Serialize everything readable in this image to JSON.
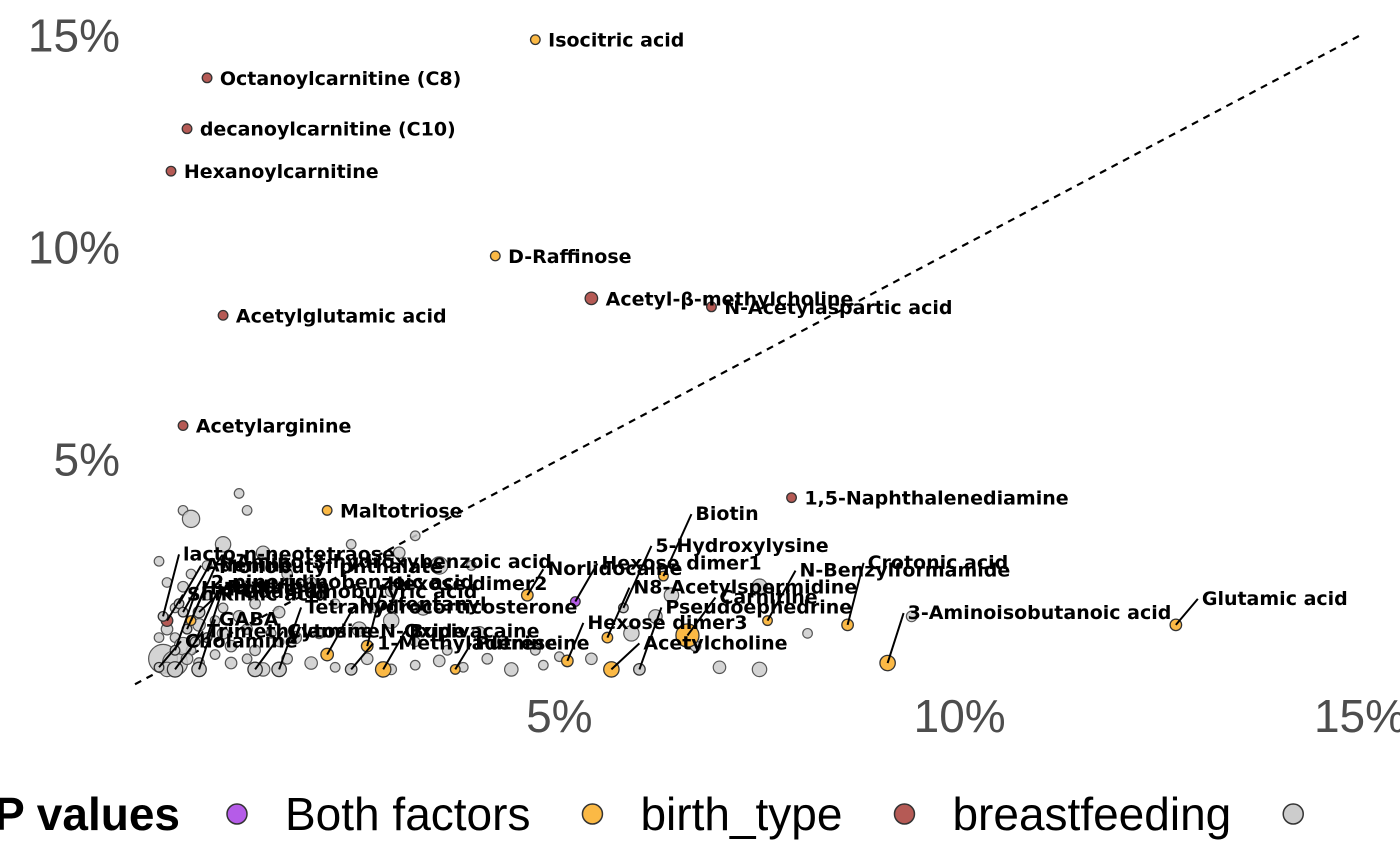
{
  "chart_data": {
    "type": "scatter",
    "title": "",
    "xlabel": "",
    "ylabel": "",
    "xlim": [
      -0.3,
      15
    ],
    "ylim": [
      -0.2,
      15.6
    ],
    "x_ticks": [
      {
        "value": 5,
        "label": "5%"
      },
      {
        "value": 10,
        "label": "10%"
      },
      {
        "value": 15,
        "label": "15%"
      }
    ],
    "y_ticks": [
      {
        "value": 5,
        "label": "5%"
      },
      {
        "value": 10,
        "label": "10%"
      },
      {
        "value": 15,
        "label": "15%"
      }
    ],
    "reference_line": {
      "style": "dashed",
      "slope": 1,
      "intercept": 0
    },
    "grid": false,
    "legend": {
      "title": "P values",
      "position": "bottom",
      "entries": [
        {
          "label": "Both factors",
          "color": "#b55ce8"
        },
        {
          "label": "birth_type",
          "color": "#fbb945"
        },
        {
          "label": "breastfeeding",
          "color": "#b55a55"
        },
        {
          "label": "",
          "color": "#cccccc"
        }
      ]
    },
    "colors": {
      "Both factors": "#b55ce8",
      "birth_type": "#fbb945",
      "breastfeeding": "#b55a55",
      "none": "#cccccc"
    },
    "labeled_points": [
      {
        "label": "Isocitric acid",
        "x": 4.7,
        "y": 14.9,
        "group": "birth_type",
        "size": 1
      },
      {
        "label": "Octanoylcarnitine (C8)",
        "x": 0.6,
        "y": 14.0,
        "group": "breastfeeding",
        "size": 1
      },
      {
        "label": "decanoylcarnitine (C10)",
        "x": 0.35,
        "y": 12.8,
        "group": "breastfeeding",
        "size": 1
      },
      {
        "label": "Hexanoylcarnitine",
        "x": 0.15,
        "y": 11.8,
        "group": "breastfeeding",
        "size": 1
      },
      {
        "label": "D-Raffinose",
        "x": 4.2,
        "y": 9.8,
        "group": "birth_type",
        "size": 1
      },
      {
        "label": "Acetyl-β-methylcholine",
        "x": 5.4,
        "y": 8.8,
        "group": "breastfeeding",
        "size": 1.3
      },
      {
        "label": "N-Acetylaspartic acid",
        "x": 6.9,
        "y": 8.6,
        "group": "breastfeeding",
        "size": 1
      },
      {
        "label": "Acetylglutamic acid",
        "x": 0.8,
        "y": 8.4,
        "group": "breastfeeding",
        "size": 1
      },
      {
        "label": "Acetylarginine",
        "x": 0.3,
        "y": 5.8,
        "group": "breastfeeding",
        "size": 1
      },
      {
        "label": "Maltotriose",
        "x": 2.1,
        "y": 3.8,
        "group": "birth_type",
        "size": 1
      },
      {
        "label": "1,5-Naphthalenediamine",
        "x": 7.9,
        "y": 4.1,
        "group": "breastfeeding",
        "size": 1
      },
      {
        "label": "Biotin",
        "x": 6.3,
        "y": 2.25,
        "group": "birth_type",
        "size": 1
      },
      {
        "label": "Norlidocaine",
        "x": 4.6,
        "y": 1.8,
        "group": "birth_type",
        "size": 1.2
      },
      {
        "label": "Hexose dimer1",
        "x": 5.2,
        "y": 1.65,
        "group": "Both factors",
        "size": 1
      },
      {
        "label": "N-Benzylformamide",
        "x": 7.6,
        "y": 1.2,
        "group": "birth_type",
        "size": 1
      },
      {
        "label": "Crotonic acid",
        "x": 8.6,
        "y": 1.1,
        "group": "birth_type",
        "size": 1.2
      },
      {
        "label": "Glutamic acid",
        "x": 12.7,
        "y": 1.1,
        "group": "birth_type",
        "size": 1.2
      },
      {
        "label": "Carnitine",
        "x": 6.6,
        "y": 0.85,
        "group": "birth_type",
        "size": 2.4
      },
      {
        "label": "3-Aminoisobutanoic acid",
        "x": 9.1,
        "y": 0.2,
        "group": "birth_type",
        "size": 1.6
      },
      {
        "label": "Pseudoephedrine",
        "x": 6.0,
        "y": 0.05,
        "group": "none",
        "size": 1.2
      },
      {
        "label": "Acetylcholine",
        "x": 5.65,
        "y": 0.05,
        "group": "birth_type",
        "size": 1.6
      },
      {
        "label": "Hexose dimer3",
        "x": 5.1,
        "y": 0.25,
        "group": "birth_type",
        "size": 1.2
      },
      {
        "label": "N8-Acetylspermidine",
        "x": 5.6,
        "y": 0.8,
        "group": "birth_type",
        "size": 1.1
      },
      {
        "label": "5-Hydroxylysine",
        "x": 5.8,
        "y": 1.5,
        "group": "none",
        "size": 1
      },
      {
        "label": "Putrescine",
        "x": 3.7,
        "y": 0.05,
        "group": "birth_type",
        "size": 1
      },
      {
        "label": "Bupivacaine",
        "x": 2.8,
        "y": 0.05,
        "group": "birth_type",
        "size": 1.6
      },
      {
        "label": "Norfentanyl",
        "x": 2.1,
        "y": 0.4,
        "group": "birth_type",
        "size": 1.3
      },
      {
        "label": "Hexose dimer2",
        "x": 2.6,
        "y": 0.6,
        "group": "birth_type",
        "size": 1.2
      },
      {
        "label": "1-Methyladenine",
        "x": 2.4,
        "y": 0.05,
        "group": "none",
        "size": 1.2
      },
      {
        "label": "Cytosine",
        "x": 1.2,
        "y": 0.05,
        "group": "none",
        "size": 1.5
      },
      {
        "label": "Proline",
        "x": 0.6,
        "y": 0.8,
        "group": "none",
        "size": 1
      },
      {
        "label": "Histidine",
        "x": 0.2,
        "y": 0.5,
        "group": "none",
        "size": 1
      },
      {
        "label": "Citrulline",
        "x": 0.5,
        "y": 1.4,
        "group": "none",
        "size": 1.2
      },
      {
        "label": "2-piperidinobenzoic acid",
        "x": 0.4,
        "y": 1.2,
        "group": "birth_type",
        "size": 1
      },
      {
        "label": "4-Guanidinobutyric acid",
        "x": 0.45,
        "y": 0.7,
        "group": "none",
        "size": 1
      },
      {
        "label": "Monobutyl phthalate",
        "x": 0.35,
        "y": 1.0,
        "group": "none",
        "size": 1
      },
      {
        "label": "Shikimic acid",
        "x": 0.1,
        "y": 1.2,
        "group": "breastfeeding",
        "size": 1.2
      },
      {
        "label": "Adenine",
        "x": 0.25,
        "y": 1.6,
        "group": "none",
        "size": 1
      },
      {
        "label": "4-Amino-3-hydroxybenzoic acid",
        "x": 0.3,
        "y": 1.4,
        "group": "none",
        "size": 1
      },
      {
        "label": "lacto-n-neotetraose",
        "x": 0.05,
        "y": 1.3,
        "group": "none",
        "size": 1
      },
      {
        "label": "Cholamine",
        "x": 0.0,
        "y": 0.1,
        "group": "none",
        "size": 1
      },
      {
        "label": "Trimethylamine N-Oxide",
        "x": 0.2,
        "y": 0.05,
        "group": "none",
        "size": 1.6
      },
      {
        "label": "GABA",
        "x": 0.5,
        "y": 0.05,
        "group": "none",
        "size": 1.5
      },
      {
        "label": "Tetrahydrocorticosterone",
        "x": 1.5,
        "y": 0.05,
        "group": "none",
        "size": 1.5
      }
    ],
    "unlabeled_points": [
      [
        1.0,
        4.2,
        1
      ],
      [
        0.3,
        3.8,
        1
      ],
      [
        0.4,
        3.6,
        1.8
      ],
      [
        0.8,
        3.0,
        1.6
      ],
      [
        1.1,
        3.8,
        1
      ],
      [
        1.3,
        2.8,
        1.4
      ],
      [
        2.4,
        3.0,
        1
      ],
      [
        3.2,
        3.2,
        1
      ],
      [
        3.0,
        2.8,
        1.2
      ],
      [
        1.6,
        2.3,
        1.1
      ],
      [
        1.9,
        2.1,
        1.1
      ],
      [
        0.0,
        2.6,
        1
      ],
      [
        0.1,
        2.1,
        1
      ],
      [
        0.4,
        2.3,
        1
      ],
      [
        0.6,
        2.5,
        1
      ],
      [
        3.9,
        2.5,
        1
      ],
      [
        3.5,
        2.5,
        1.8
      ],
      [
        2.9,
        1.9,
        1.2
      ],
      [
        3.3,
        1.5,
        1.5
      ],
      [
        0.1,
        1.0,
        1.2
      ],
      [
        0.2,
        0.8,
        1
      ],
      [
        0.4,
        0.5,
        1
      ],
      [
        0.8,
        0.9,
        1.2
      ],
      [
        1.1,
        1.0,
        1.1
      ],
      [
        1.4,
        0.9,
        1
      ],
      [
        1.7,
        0.8,
        1.3
      ],
      [
        2.0,
        0.9,
        1.1
      ],
      [
        2.5,
        1.0,
        1.5
      ],
      [
        2.9,
        1.2,
        1.6
      ],
      [
        3.2,
        0.7,
        1
      ],
      [
        3.6,
        0.5,
        1
      ],
      [
        4.0,
        0.9,
        1.4
      ],
      [
        4.3,
        0.7,
        1.2
      ],
      [
        4.7,
        0.5,
        1
      ],
      [
        5.0,
        0.35,
        1
      ],
      [
        5.4,
        0.3,
        1.2
      ],
      [
        6.4,
        1.8,
        1.5
      ],
      [
        6.7,
        0.6,
        1.1
      ],
      [
        7.5,
        2.0,
        1.6
      ],
      [
        8.1,
        0.9,
        1
      ],
      [
        9.4,
        1.3,
        1.1
      ],
      [
        7.0,
        0.1,
        1.3
      ],
      [
        7.5,
        0.05,
        1.5
      ],
      [
        5.9,
        0.9,
        1.6
      ],
      [
        6.2,
        1.3,
        1.4
      ],
      [
        0.05,
        0.3,
        3.0
      ],
      [
        0.2,
        0.2,
        2.6
      ],
      [
        0.3,
        0.6,
        1.8
      ],
      [
        0.1,
        0.05,
        1.5
      ],
      [
        0.35,
        0.3,
        1.2
      ],
      [
        0.5,
        0.2,
        1.1
      ],
      [
        0.7,
        0.4,
        1
      ],
      [
        0.9,
        0.2,
        1.2
      ],
      [
        1.1,
        0.3,
        1
      ],
      [
        1.3,
        0.05,
        1.4
      ],
      [
        1.6,
        0.3,
        1.1
      ],
      [
        1.9,
        0.2,
        1.3
      ],
      [
        2.2,
        0.1,
        1
      ],
      [
        2.6,
        0.3,
        1.2
      ],
      [
        2.9,
        0.05,
        1.1
      ],
      [
        3.2,
        0.15,
        1
      ],
      [
        3.5,
        0.25,
        1.2
      ],
      [
        3.8,
        0.1,
        1
      ],
      [
        4.1,
        0.3,
        1.1
      ],
      [
        4.4,
        0.05,
        1.4
      ],
      [
        4.8,
        0.15,
        1
      ],
      [
        0.2,
        1.5,
        1
      ],
      [
        0.3,
        2.0,
        1.1
      ],
      [
        0.6,
        1.8,
        1
      ],
      [
        0.8,
        1.5,
        1
      ],
      [
        1.2,
        1.6,
        1.1
      ],
      [
        1.5,
        1.4,
        1.2
      ],
      [
        2.2,
        1.6,
        1
      ],
      [
        2.7,
        1.5,
        1
      ],
      [
        0.9,
        0.6,
        1.2
      ],
      [
        1.2,
        0.5,
        1.1
      ],
      [
        1.5,
        0.7,
        1
      ],
      [
        0.0,
        0.8,
        1
      ],
      [
        0.5,
        1.1,
        1.3
      ],
      [
        0.7,
        1.2,
        1
      ],
      [
        1.0,
        1.3,
        1.2
      ]
    ]
  }
}
